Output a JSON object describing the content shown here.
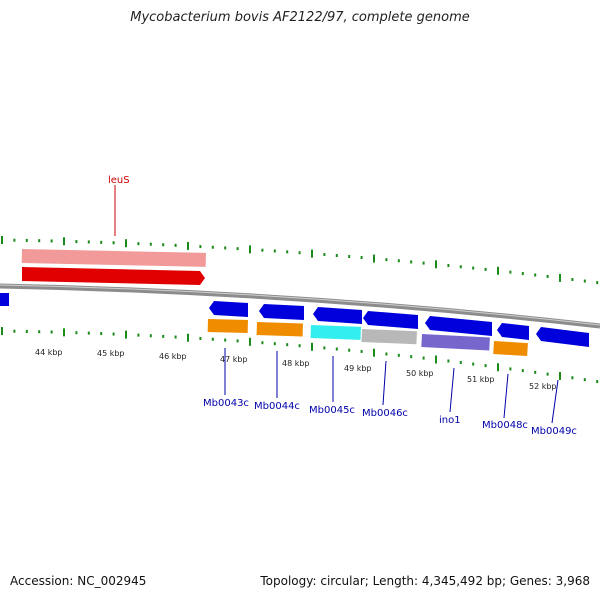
{
  "title": "Mycobacterium bovis AF2122/97, complete genome",
  "footer": {
    "accession": "Accession: NC_002945",
    "stats": "Topology: circular; Length: 4,345,492 bp; Genes: 3,968"
  },
  "colors": {
    "backbone": "#8c8c8c",
    "tick": "#1a8a1a",
    "forward_gene": "#e00000",
    "forward_gene_light": "#f29a9a",
    "reverse_gene": "#0000dd",
    "cds_orange": "#f08c00",
    "cds_cyan": "#33eeee",
    "cds_gray": "#b8b8b8",
    "cds_purple": "#7766cc",
    "label_blue": "#0000aa",
    "label_red": "#cc0000"
  },
  "kbp_labels": [
    "44 kbp",
    "45 kbp",
    "46 kbp",
    "47 kbp",
    "48 kbp",
    "49 kbp",
    "50 kbp",
    "51 kbp",
    "52 kbp"
  ],
  "genes": [
    {
      "label": "leuS",
      "strand": "forward"
    },
    {
      "label": "Mb0043c",
      "strand": "reverse"
    },
    {
      "label": "Mb0044c",
      "strand": "reverse"
    },
    {
      "label": "Mb0045c",
      "strand": "reverse"
    },
    {
      "label": "Mb0046c",
      "strand": "reverse"
    },
    {
      "label": "ino1",
      "strand": "reverse"
    },
    {
      "label": "Mb0048c",
      "strand": "reverse"
    },
    {
      "label": "Mb0049c",
      "strand": "reverse"
    }
  ]
}
